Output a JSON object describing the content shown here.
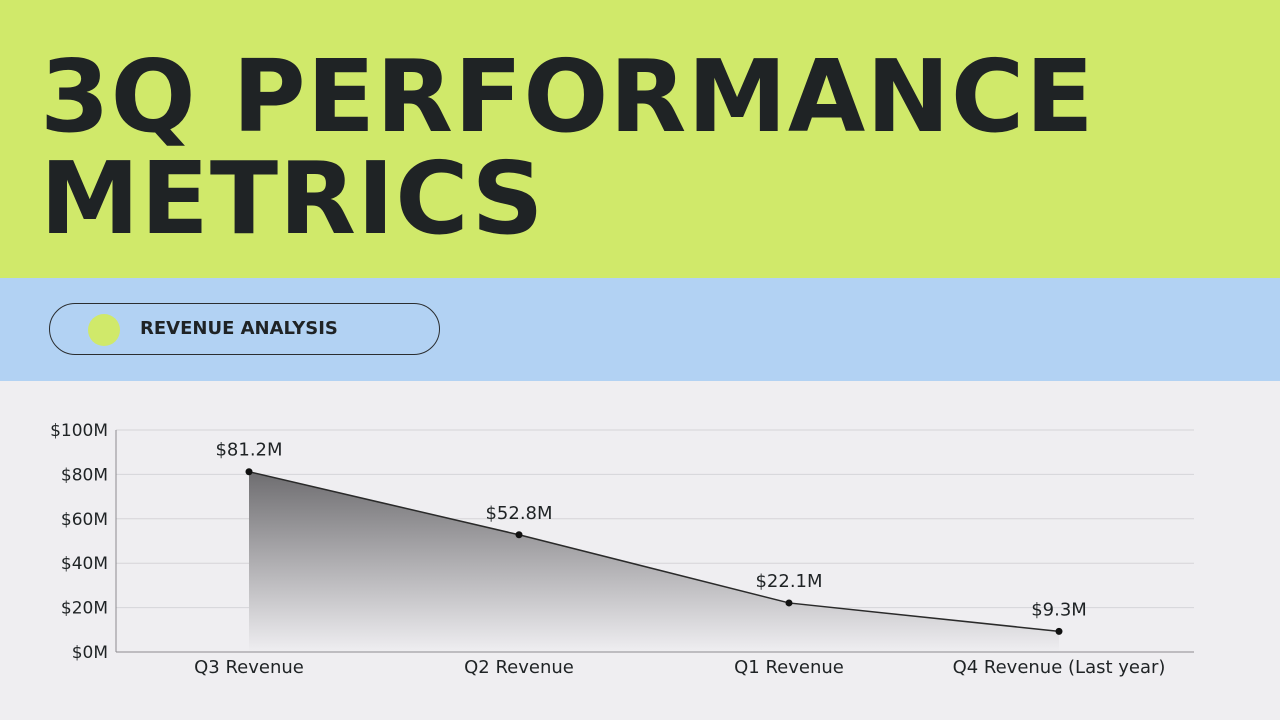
{
  "header": {
    "title_line1": "3Q PERFORMANCE",
    "title_line2": "METRICS"
  },
  "section": {
    "label": "REVENUE ANALYSIS"
  },
  "colors": {
    "title_band": "#d0e96a",
    "section_band": "#b2d2f3",
    "chart_background": "#efeef1",
    "text": "#1f2325",
    "line": "#2a2a2a",
    "area_gradient_top": "#6e6d70",
    "area_gradient_bottom": "#efeef1",
    "grid": "#d5d4d8"
  },
  "chart_data": {
    "type": "area",
    "categories": [
      "Q3 Revenue",
      "Q2 Revenue",
      "Q1 Revenue",
      "Q4 Revenue (Last year)"
    ],
    "values": [
      81.2,
      52.8,
      22.1,
      9.3
    ],
    "data_labels": [
      "$81.2M",
      "$52.8M",
      "$22.1M",
      "$9.3M"
    ],
    "y_ticks": [
      "$0M",
      "$20M",
      "$40M",
      "$60M",
      "$80M",
      "$100M"
    ],
    "y_tick_values": [
      0,
      20,
      40,
      60,
      80,
      100
    ],
    "ylim": [
      0,
      100
    ],
    "title": "",
    "xlabel": "",
    "ylabel": "",
    "grid": true,
    "legend": "none"
  }
}
